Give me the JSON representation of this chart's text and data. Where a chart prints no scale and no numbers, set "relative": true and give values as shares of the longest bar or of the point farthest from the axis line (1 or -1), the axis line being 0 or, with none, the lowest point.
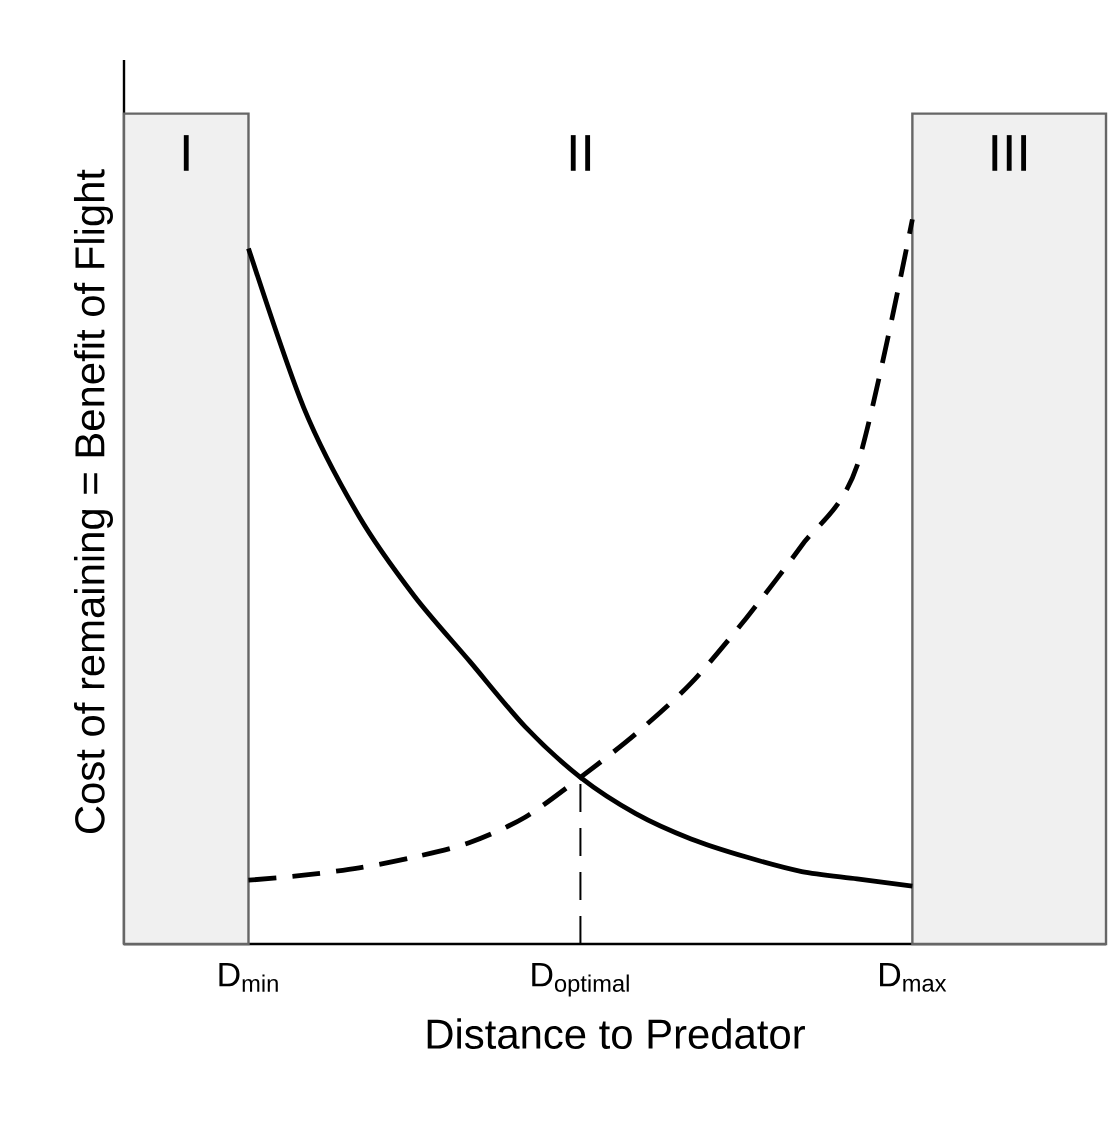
{
  "chart_data": {
    "type": "line",
    "relative": true,
    "xlabel": "Distance to Predator",
    "ylabel": "Cost of remaining = Benefit of Flight",
    "categories": [
      null,
      null,
      "D$_{min}$",
      null,
      null,
      null,
      null,
      null,
      "D$_{optimal}$",
      null,
      null,
      null,
      null,
      null,
      "D$_{max}$",
      null,
      null,
      null
    ],
    "series": [
      {
        "color": "#000000",
        "line_style": "solid",
        "values": [
          null,
          null,
          0.96,
          0.74,
          0.59,
          0.48,
          0.39,
          0.3,
          0.23,
          0.18,
          0.145,
          0.12,
          0.1,
          0.09,
          0.08,
          null,
          null,
          null
        ]
      },
      {
        "color": "#000000",
        "line_style": "dashed",
        "values": [
          null,
          null,
          0.088,
          0.095,
          0.105,
          0.12,
          0.14,
          0.175,
          0.23,
          0.29,
          0.36,
          0.45,
          0.55,
          0.66,
          1.0,
          null,
          null,
          null
        ]
      }
    ],
    "ref_lines": [
      {
        "axis": "x",
        "value": "D$_{optimal}$",
        "line_style": "dashed"
      }
    ],
    "annotations": [
      "I",
      "II",
      "III"
    ]
  }
}
